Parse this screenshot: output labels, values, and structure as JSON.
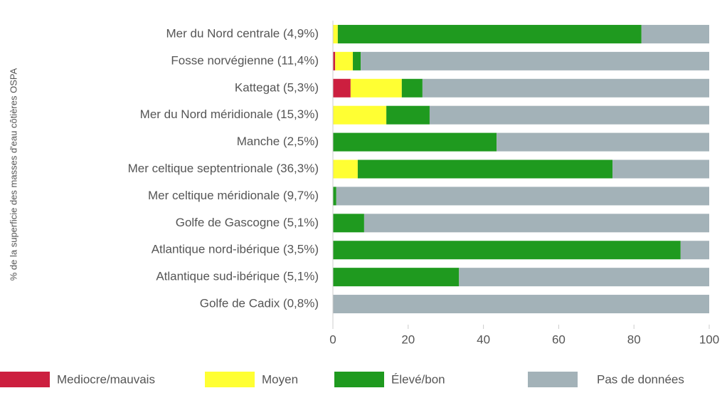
{
  "chart_data": {
    "type": "bar",
    "orientation": "horizontal",
    "stacked": true,
    "y_label": "% de la superficie des masses d'eau côtières OSPA",
    "categories": [
      "Mer du Nord centrale (4,9%)",
      "Fosse norvégienne (11,4%)",
      "Kattegat (5,3%)",
      "Mer du Nord méridionale (15,3%)",
      "Manche (2,5%)",
      "Mer celtique septentrionale (36,3%)",
      "Mer celtique méridionale (9,7%)",
      "Golfe de Gascogne (5,1%)",
      "Atlantique nord-ibérique (3,5%)",
      "Atlantique sud-ibérique (5,1%)",
      "Golfe de Cadix (0,8%)"
    ],
    "series": [
      {
        "name": "Mediocre/mauvais",
        "color": "#cc1f3f",
        "values": [
          0,
          0.6,
          4.7,
          0,
          0,
          0,
          0,
          0,
          0,
          0,
          0
        ]
      },
      {
        "name": "Moyen",
        "color": "#ffff33",
        "values": [
          1.3,
          4.7,
          13.6,
          14.2,
          0,
          6.6,
          0,
          0,
          0,
          0,
          0
        ]
      },
      {
        "name": "Élevé/bon",
        "color": "#1f9a1f",
        "values": [
          80.7,
          2.1,
          5.5,
          11.5,
          43.5,
          67.7,
          0.9,
          8.3,
          92.4,
          33.5,
          0
        ]
      },
      {
        "name": "Pas de données",
        "color": "#a3b2b8",
        "values": [
          18,
          92.6,
          76.2,
          74.3,
          56.5,
          25.7,
          99.1,
          91.7,
          7.6,
          66.5,
          100
        ]
      }
    ],
    "xlim": [
      0,
      100
    ],
    "xticks": [
      0,
      20,
      40,
      60,
      80,
      100
    ],
    "grid": false
  }
}
